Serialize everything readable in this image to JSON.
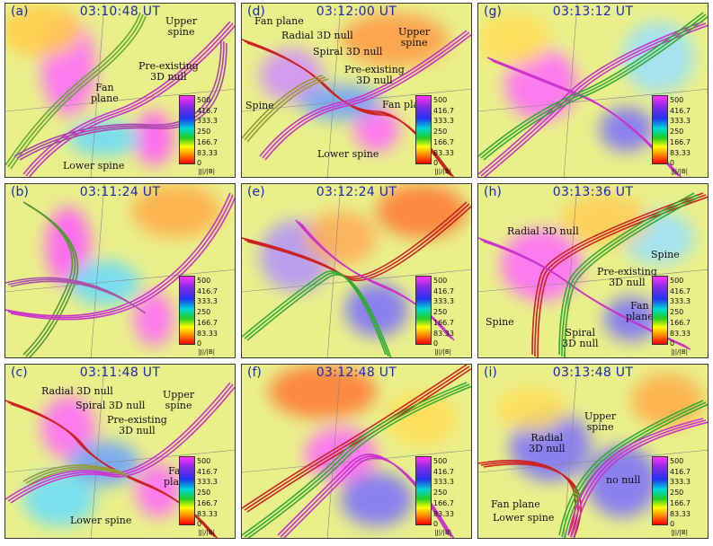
{
  "colorbar": {
    "ticks": [
      "500",
      "416.7",
      "333.3",
      "250",
      "166.7",
      "83.33",
      "0"
    ],
    "unit": "|J|/|B|",
    "colors": [
      "#ff33ff",
      "#8a2be2",
      "#2233ee",
      "#00d8d8",
      "#22cc22",
      "#ffff00",
      "#ff8800",
      "#ff0000"
    ]
  },
  "panels": [
    {
      "id": "a",
      "label": "(a)",
      "time": "03:10:48 UT",
      "annotations": {
        "upper_spine": "Upper\nspine",
        "fan_plane": "Fan\nplane",
        "preexisting_null": "Pre-existing\n3D null",
        "lower_spine": "Lower spine"
      }
    },
    {
      "id": "d",
      "label": "(d)",
      "time": "03:12:00 UT",
      "annotations": {
        "fan_plane_top": "Fan plane",
        "radial_null": "Radial 3D null",
        "spiral_null": "Spiral 3D null",
        "upper_spine": "Upper\nspine",
        "preexisting_null": "Pre-existing\n3D null",
        "spine": "Spine",
        "fan_plane": "Fan plane",
        "lower_spine": "Lower spine"
      }
    },
    {
      "id": "g",
      "label": "(g)",
      "time": "03:13:12 UT",
      "annotations": {}
    },
    {
      "id": "b",
      "label": "(b)",
      "time": "03:11:24 UT",
      "annotations": {}
    },
    {
      "id": "e",
      "label": "(e)",
      "time": "03:12:24 UT",
      "annotations": {}
    },
    {
      "id": "h",
      "label": "(h)",
      "time": "03:13:36 UT",
      "annotations": {
        "radial_null": "Radial 3D null",
        "spine_right": "Spine",
        "preexisting_null": "Pre-existing\n3D null",
        "fan_plane": "Fan\nplane",
        "spine_left": "Spine",
        "spiral_null": "Spiral\n3D null"
      }
    },
    {
      "id": "c",
      "label": "(c)",
      "time": "03:11:48 UT",
      "annotations": {
        "radial_null": "Radial 3D null",
        "spiral_null": "Spiral 3D null",
        "upper_spine": "Upper\nspine",
        "preexisting_null": "Pre-existing\n3D null",
        "fan_plane": "Fan\nplane",
        "lower_spine": "Lower spine"
      }
    },
    {
      "id": "f",
      "label": "(f)",
      "time": "03:12:48 UT",
      "annotations": {}
    },
    {
      "id": "i",
      "label": "(i)",
      "time": "03:13:48 UT",
      "annotations": {
        "upper_spine": "Upper\nspine",
        "radial_null": "Radial\n3D null",
        "no_null": "no null",
        "fan_plane": "Fan plane",
        "lower_spine": "Lower spine"
      }
    }
  ]
}
